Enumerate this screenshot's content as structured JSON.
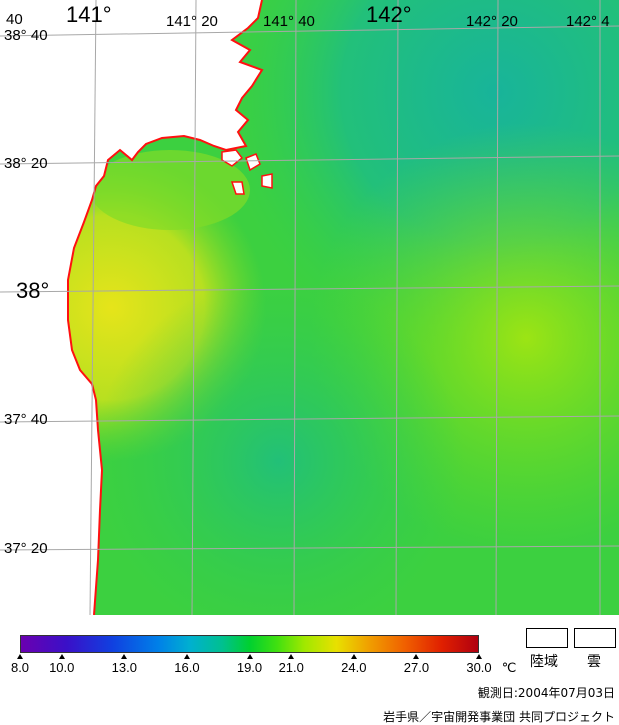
{
  "map": {
    "lon_labels": [
      {
        "text": "141°"
      },
      {
        "text": "141°  20"
      },
      {
        "text": "141°  40"
      },
      {
        "text": "142°"
      },
      {
        "text": "142°  20"
      },
      {
        "text": "142°  4"
      }
    ],
    "lat_labels": [
      {
        "text": "38°  40"
      },
      {
        "text": "38°  20"
      },
      {
        "text": "38°"
      },
      {
        "text": "37°  40"
      },
      {
        "text": "37°  20"
      }
    ],
    "corner_label": "40"
  },
  "colorbar": {
    "min": 8.0,
    "max": 30.0,
    "ticks": [
      "8.0",
      "10.0",
      "13.0",
      "16.0",
      "19.0",
      "21.0",
      "24.0",
      "27.0",
      "30.0"
    ],
    "unit": "℃"
  },
  "legend": {
    "land_label": "陸域",
    "cloud_label": "雲"
  },
  "observation_date": "観測日:2004年07月03日",
  "credit": "岩手県／宇宙開発事業団 共同プロジェクト",
  "colors": {
    "coastline": "#ff1010",
    "land": "#ffffff",
    "sea_green": "#3cd23c"
  }
}
